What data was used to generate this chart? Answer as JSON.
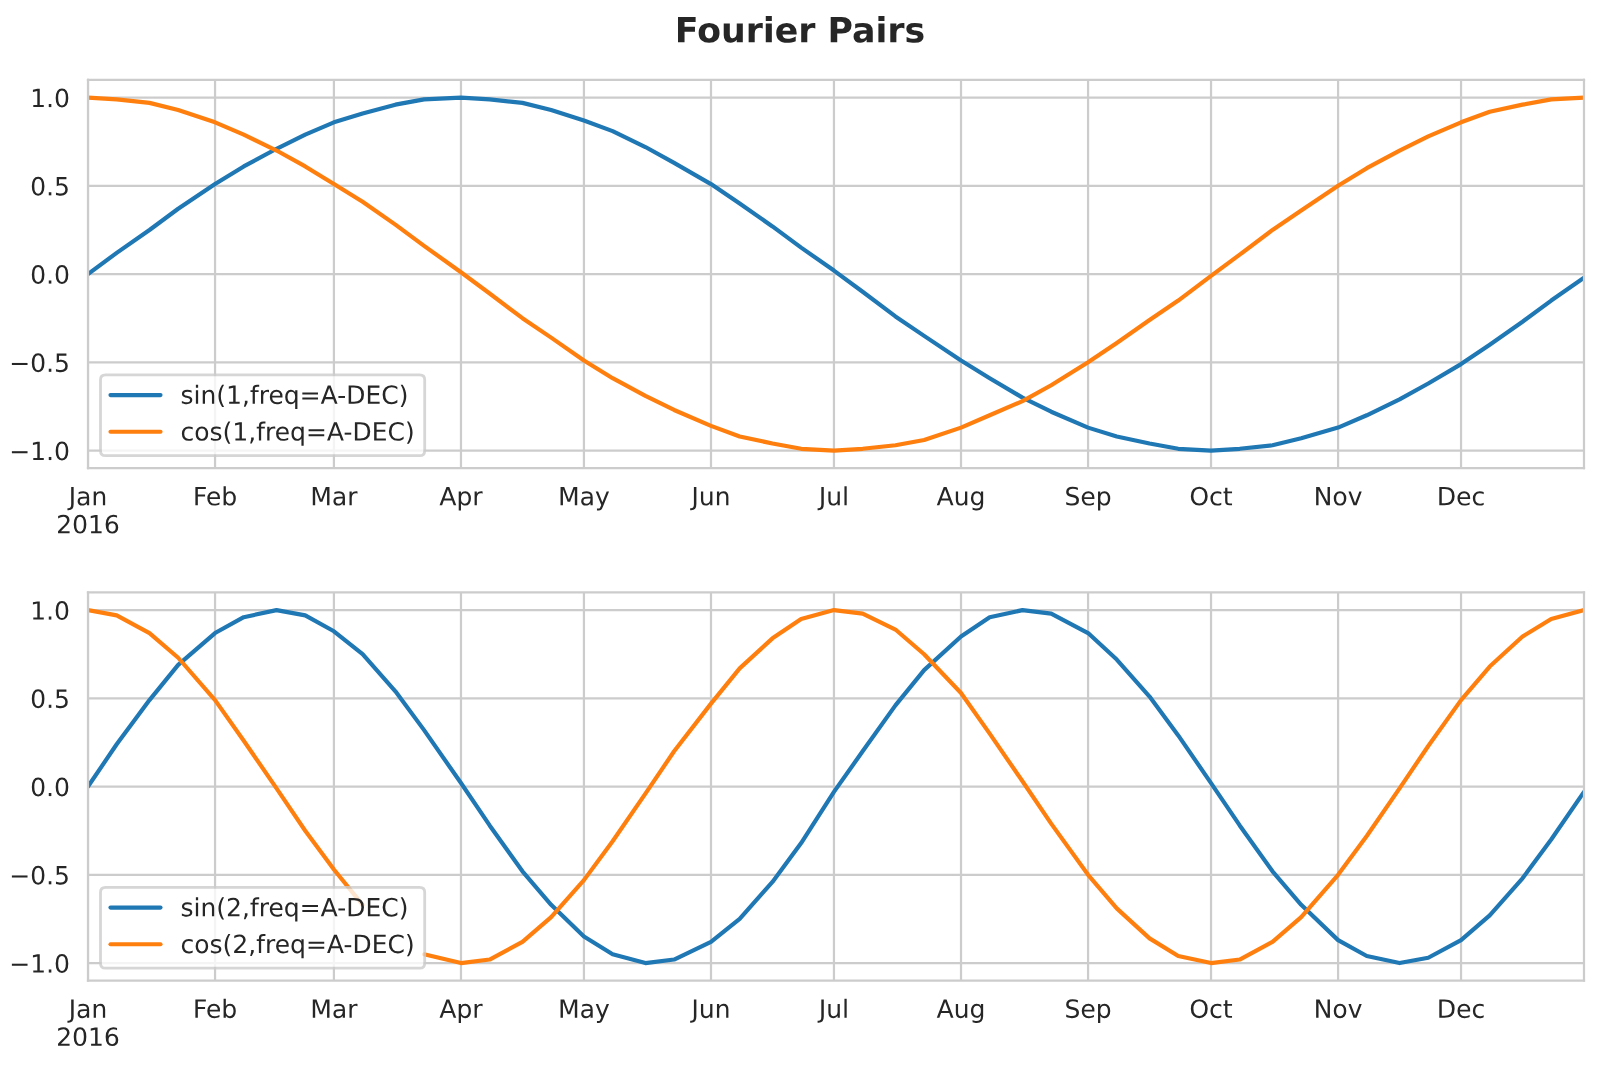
{
  "chart_data": [
    {
      "type": "line",
      "title": "Fourier Pairs",
      "x": [
        "2016-01-01",
        "2016-01-08",
        "2016-01-16",
        "2016-01-23",
        "2016-02-01",
        "2016-02-08",
        "2016-02-16",
        "2016-02-23",
        "2016-03-01",
        "2016-03-08",
        "2016-03-16",
        "2016-03-23",
        "2016-04-01",
        "2016-04-08",
        "2016-04-16",
        "2016-04-23",
        "2016-05-01",
        "2016-05-08",
        "2016-05-16",
        "2016-05-23",
        "2016-06-01",
        "2016-06-08",
        "2016-06-16",
        "2016-06-23",
        "2016-07-01",
        "2016-07-08",
        "2016-07-16",
        "2016-07-23",
        "2016-08-01",
        "2016-08-08",
        "2016-08-16",
        "2016-08-23",
        "2016-09-01",
        "2016-09-08",
        "2016-09-16",
        "2016-09-23",
        "2016-10-01",
        "2016-10-08",
        "2016-10-16",
        "2016-10-23",
        "2016-11-01",
        "2016-11-08",
        "2016-11-16",
        "2016-11-23",
        "2016-12-01",
        "2016-12-08",
        "2016-12-16",
        "2016-12-23",
        "2016-12-31"
      ],
      "series": [
        {
          "name": "sin(1,freq=A-DEC)",
          "color": "#1f77b4",
          "values": [
            0.0,
            0.12,
            0.25,
            0.37,
            0.51,
            0.61,
            0.71,
            0.79,
            0.86,
            0.91,
            0.96,
            0.99,
            1.0,
            0.99,
            0.97,
            0.93,
            0.87,
            0.81,
            0.72,
            0.63,
            0.51,
            0.4,
            0.27,
            0.15,
            0.02,
            -0.1,
            -0.24,
            -0.35,
            -0.49,
            -0.59,
            -0.7,
            -0.78,
            -0.87,
            -0.92,
            -0.96,
            -0.99,
            -1.0,
            -0.99,
            -0.97,
            -0.93,
            -0.87,
            -0.8,
            -0.71,
            -0.62,
            -0.51,
            -0.4,
            -0.27,
            -0.15,
            -0.02
          ]
        },
        {
          "name": "cos(1,freq=A-DEC)",
          "color": "#ff7f0e",
          "values": [
            1.0,
            0.99,
            0.97,
            0.93,
            0.86,
            0.79,
            0.7,
            0.61,
            0.51,
            0.41,
            0.28,
            0.16,
            0.01,
            -0.11,
            -0.25,
            -0.36,
            -0.49,
            -0.59,
            -0.69,
            -0.77,
            -0.86,
            -0.92,
            -0.96,
            -0.99,
            -1.0,
            -0.99,
            -0.97,
            -0.94,
            -0.87,
            -0.8,
            -0.72,
            -0.63,
            -0.5,
            -0.39,
            -0.26,
            -0.15,
            -0.01,
            0.11,
            0.25,
            0.36,
            0.5,
            0.6,
            0.7,
            0.78,
            0.86,
            0.92,
            0.96,
            0.99,
            1.0
          ]
        }
      ],
      "xlim": [
        "2016-01-01",
        "2016-12-31"
      ],
      "xticks": [
        {
          "value": "2016-01-01",
          "label": "Jan\n2016"
        },
        {
          "value": "2016-02-01",
          "label": "Feb"
        },
        {
          "value": "2016-03-01",
          "label": "Mar"
        },
        {
          "value": "2016-04-01",
          "label": "Apr"
        },
        {
          "value": "2016-05-01",
          "label": "May"
        },
        {
          "value": "2016-06-01",
          "label": "Jun"
        },
        {
          "value": "2016-07-01",
          "label": "Jul"
        },
        {
          "value": "2016-08-01",
          "label": "Aug"
        },
        {
          "value": "2016-09-01",
          "label": "Sep"
        },
        {
          "value": "2016-10-01",
          "label": "Oct"
        },
        {
          "value": "2016-11-01",
          "label": "Nov"
        },
        {
          "value": "2016-12-01",
          "label": "Dec"
        }
      ],
      "ylim": [
        -1.1,
        1.1
      ],
      "yticks": [
        {
          "value": 1.0,
          "label": "1.0"
        },
        {
          "value": 0.5,
          "label": "0.5"
        },
        {
          "value": 0.0,
          "label": "0.0"
        },
        {
          "value": -0.5,
          "label": "−0.5"
        },
        {
          "value": -1.0,
          "label": "−1.0"
        }
      ],
      "grid": true,
      "legend": "bottom left",
      "line_style": "solid"
    },
    {
      "type": "line",
      "x": [
        "2016-01-01",
        "2016-01-08",
        "2016-01-16",
        "2016-01-23",
        "2016-02-01",
        "2016-02-08",
        "2016-02-16",
        "2016-02-23",
        "2016-03-01",
        "2016-03-08",
        "2016-03-16",
        "2016-03-23",
        "2016-04-01",
        "2016-04-08",
        "2016-04-16",
        "2016-04-23",
        "2016-05-01",
        "2016-05-08",
        "2016-05-16",
        "2016-05-23",
        "2016-06-01",
        "2016-06-08",
        "2016-06-16",
        "2016-06-23",
        "2016-07-01",
        "2016-07-08",
        "2016-07-16",
        "2016-07-23",
        "2016-08-01",
        "2016-08-08",
        "2016-08-16",
        "2016-08-23",
        "2016-09-01",
        "2016-09-08",
        "2016-09-16",
        "2016-09-23",
        "2016-10-01",
        "2016-10-08",
        "2016-10-16",
        "2016-10-23",
        "2016-11-01",
        "2016-11-08",
        "2016-11-16",
        "2016-11-23",
        "2016-12-01",
        "2016-12-08",
        "2016-12-16",
        "2016-12-23",
        "2016-12-31"
      ],
      "series": [
        {
          "name": "sin(2,freq=A-DEC)",
          "color": "#1f77b4",
          "values": [
            0.0,
            0.24,
            0.49,
            0.69,
            0.87,
            0.96,
            1.0,
            0.97,
            0.88,
            0.75,
            0.54,
            0.32,
            0.02,
            -0.22,
            -0.48,
            -0.67,
            -0.85,
            -0.95,
            -1.0,
            -0.98,
            -0.88,
            -0.75,
            -0.54,
            -0.32,
            -0.03,
            0.2,
            0.46,
            0.66,
            0.85,
            0.96,
            1.0,
            0.98,
            0.87,
            0.72,
            0.51,
            0.29,
            0.02,
            -0.22,
            -0.48,
            -0.67,
            -0.87,
            -0.96,
            -1.0,
            -0.97,
            -0.87,
            -0.73,
            -0.52,
            -0.3,
            -0.03
          ]
        },
        {
          "name": "cos(2,freq=A-DEC)",
          "color": "#ff7f0e",
          "values": [
            1.0,
            0.97,
            0.87,
            0.73,
            0.49,
            0.26,
            -0.01,
            -0.25,
            -0.47,
            -0.67,
            null,
            -0.95,
            -1.0,
            -0.98,
            -0.88,
            -0.74,
            -0.53,
            -0.31,
            -0.04,
            0.2,
            0.47,
            0.67,
            0.84,
            0.95,
            1.0,
            0.98,
            0.89,
            0.75,
            0.53,
            0.3,
            0.03,
            -0.21,
            -0.5,
            -0.69,
            -0.86,
            -0.96,
            -1.0,
            -0.98,
            -0.88,
            -0.74,
            -0.5,
            -0.28,
            -0.01,
            0.23,
            0.49,
            0.68,
            0.85,
            0.95,
            1.0
          ]
        }
      ],
      "xlim": [
        "2016-01-01",
        "2016-12-31"
      ],
      "xticks": [
        {
          "value": "2016-01-01",
          "label": "Jan\n2016"
        },
        {
          "value": "2016-02-01",
          "label": "Feb"
        },
        {
          "value": "2016-03-01",
          "label": "Mar"
        },
        {
          "value": "2016-04-01",
          "label": "Apr"
        },
        {
          "value": "2016-05-01",
          "label": "May"
        },
        {
          "value": "2016-06-01",
          "label": "Jun"
        },
        {
          "value": "2016-07-01",
          "label": "Jul"
        },
        {
          "value": "2016-08-01",
          "label": "Aug"
        },
        {
          "value": "2016-09-01",
          "label": "Sep"
        },
        {
          "value": "2016-10-01",
          "label": "Oct"
        },
        {
          "value": "2016-11-01",
          "label": "Nov"
        },
        {
          "value": "2016-12-01",
          "label": "Dec"
        }
      ],
      "ylim": [
        -1.1,
        1.1
      ],
      "yticks": [
        {
          "value": 1.0,
          "label": "1.0"
        },
        {
          "value": 0.5,
          "label": "0.5"
        },
        {
          "value": 0.0,
          "label": "0.0"
        },
        {
          "value": -0.5,
          "label": "−0.5"
        },
        {
          "value": -1.0,
          "label": "−1.0"
        }
      ],
      "grid": true,
      "legend": "bottom left",
      "line_style": "solid"
    }
  ]
}
